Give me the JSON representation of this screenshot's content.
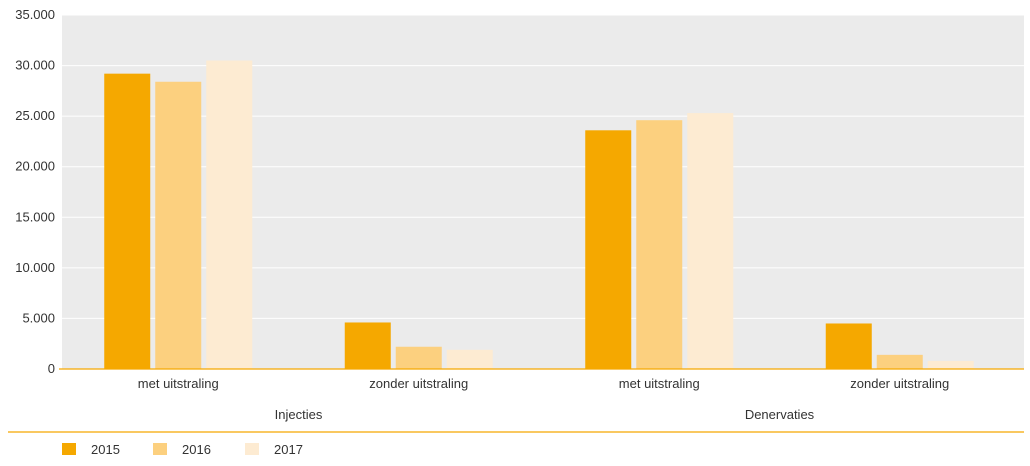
{
  "chart_data": {
    "type": "bar",
    "title": "",
    "xlabel": "",
    "ylabel": "",
    "ylim": [
      0,
      35000
    ],
    "yticks": [
      0,
      5000,
      10000,
      15000,
      20000,
      25000,
      30000,
      35000
    ],
    "ytick_labels": [
      "0",
      "5.000",
      "10.000",
      "15.000",
      "20.000",
      "25.000",
      "30.000",
      "35.000"
    ],
    "grid": true,
    "legend_position": "bottom-left",
    "groups": [
      {
        "label": "Injecties",
        "categories": [
          "met uitstraling",
          "zonder uitstraling"
        ]
      },
      {
        "label": "Denervaties",
        "categories": [
          "met uitstraling",
          "zonder uitstraling"
        ]
      }
    ],
    "categories": [
      "met uitstraling",
      "zonder uitstraling",
      "met uitstraling",
      "zonder uitstraling"
    ],
    "series": [
      {
        "name": "2015",
        "color": "#f5a800",
        "values": [
          29200,
          4600,
          23600,
          4500
        ]
      },
      {
        "name": "2016",
        "color": "#fcd07f",
        "values": [
          28400,
          2200,
          24600,
          1400
        ]
      },
      {
        "name": "2017",
        "color": "#fdebd2",
        "values": [
          30500,
          1900,
          25300,
          800
        ]
      }
    ],
    "colors": {
      "plot_background": "#ebebeb",
      "gridline": "#ffffff",
      "axis_line": "#f5a800"
    }
  }
}
